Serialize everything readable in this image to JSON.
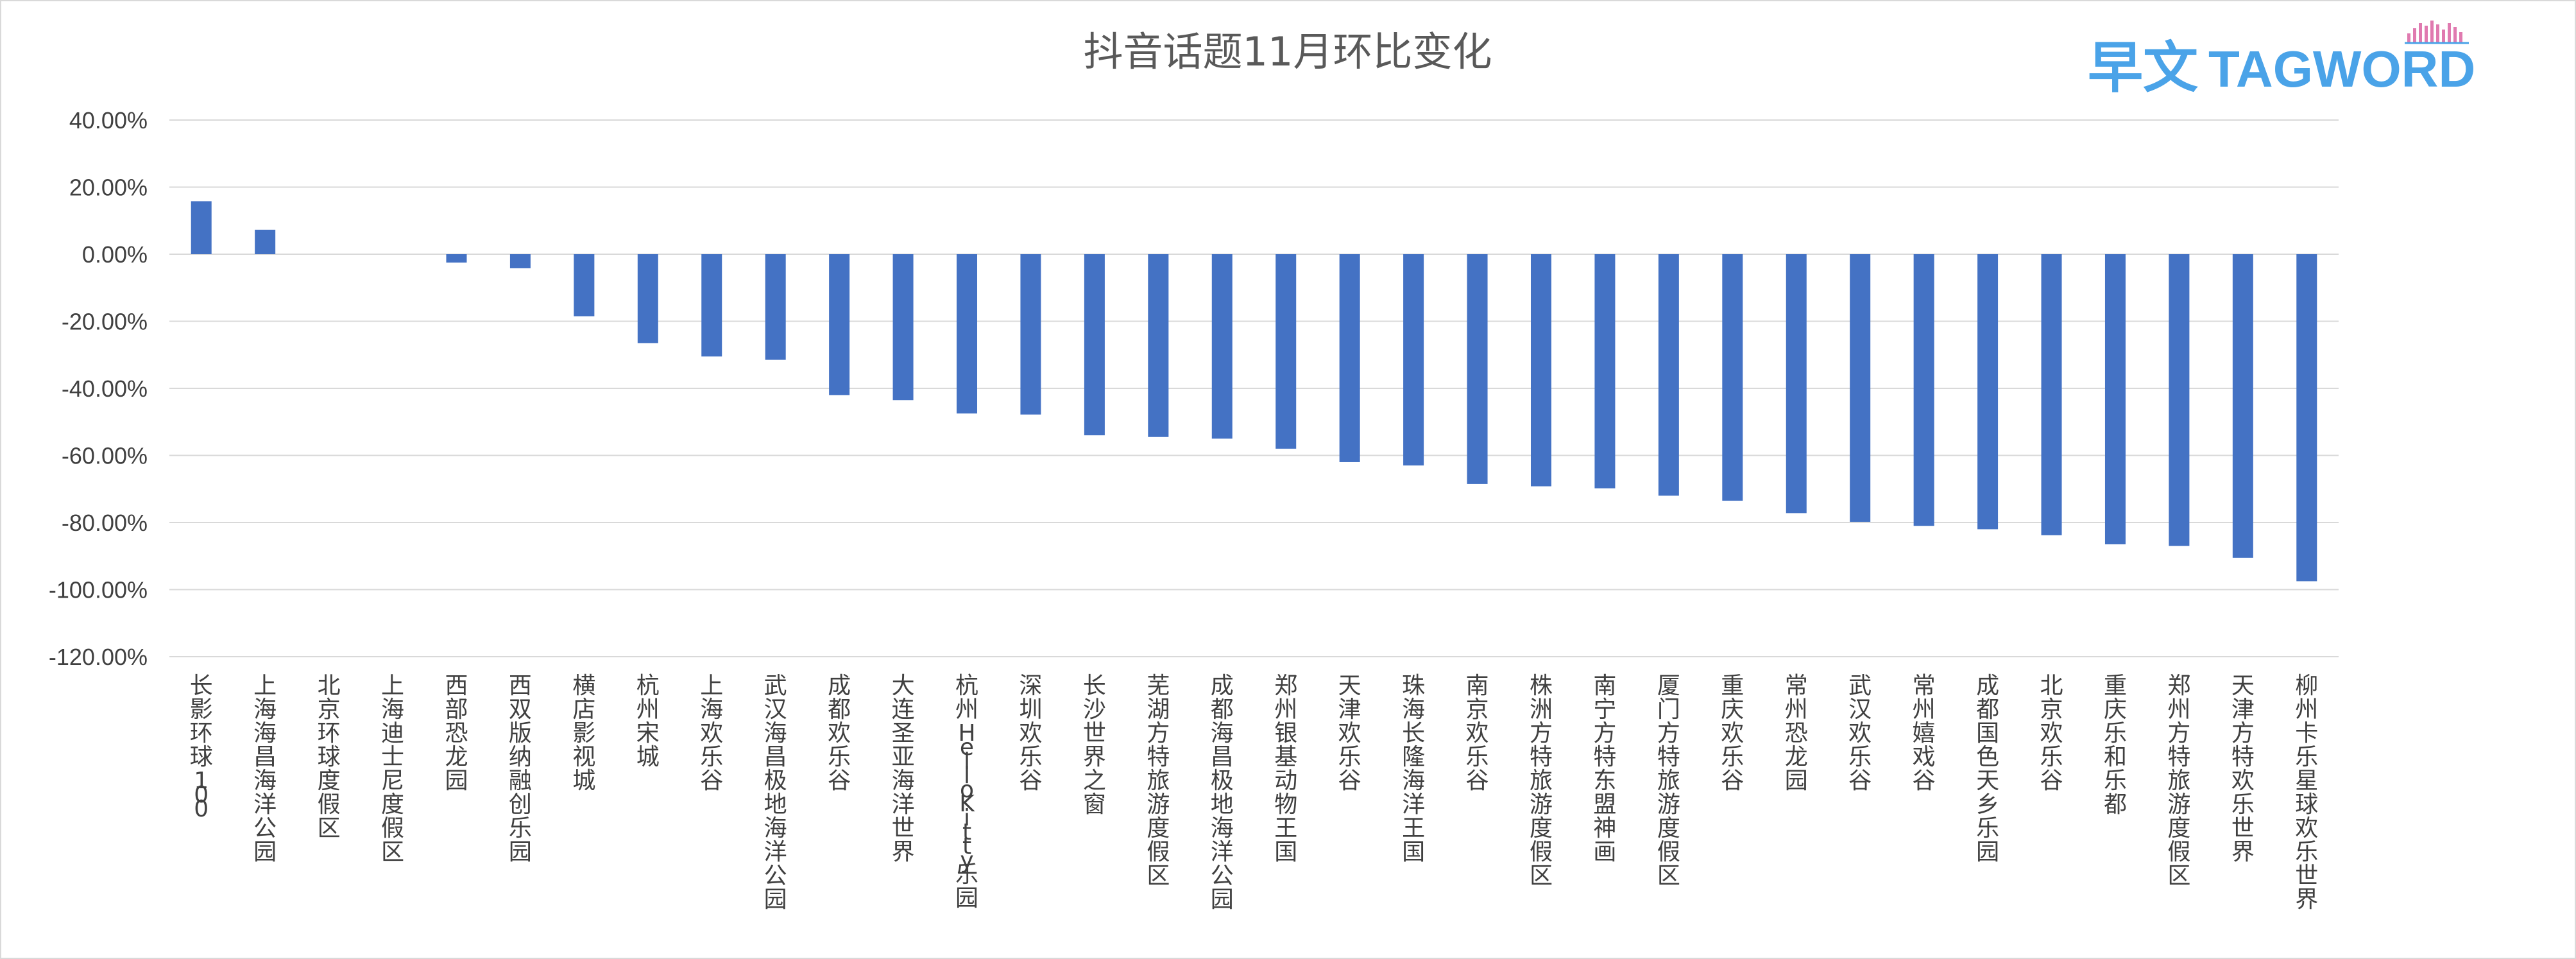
{
  "logo": {
    "chinese": "早文",
    "english": "TAGWORD",
    "color": "#4aa3e8"
  },
  "chart_data": {
    "type": "bar",
    "title": "抖音话题11月环比变化",
    "xlabel": "",
    "ylabel": "",
    "ylim": [
      -120,
      40
    ],
    "y_ticks": [
      "40.00%",
      "20.00%",
      "0.00%",
      "-20.00%",
      "-40.00%",
      "-60.00%",
      "-80.00%",
      "-100.00%",
      "-120.00%"
    ],
    "y_tick_values": [
      40,
      20,
      0,
      -20,
      -40,
      -60,
      -80,
      -100,
      -120
    ],
    "grid": true,
    "legend": "none",
    "bar_color": "#4472c4",
    "categories": [
      "长影环球100",
      "上海海昌海洋公园",
      "北京环球度假区",
      "上海迪士尼度假区",
      "西部恐龙园",
      "西双版纳融创乐园",
      "横店影视城",
      "杭州宋城",
      "上海欢乐谷",
      "武汉海昌极地海洋公园",
      "成都欢乐谷",
      "大连圣亚海洋世界",
      "杭州HelloKitty乐园",
      "深圳欢乐谷",
      "长沙世界之窗",
      "芜湖方特旅游度假区",
      "成都海昌极地海洋公园",
      "郑州银基动物王国",
      "天津欢乐谷",
      "珠海长隆海洋王国",
      "南京欢乐谷",
      "株洲方特旅游度假区",
      "南宁方特东盟神画",
      "厦门方特旅游度假区",
      "重庆欢乐谷",
      "常州恐龙园",
      "武汉欢乐谷",
      "常州嬉戏谷",
      "成都国色天乡乐园",
      "北京欢乐谷",
      "重庆乐和乐都",
      "郑州方特旅游度假区",
      "天津方特欢乐世界",
      "柳州卡乐星球欢乐世界"
    ],
    "values": [
      15.8,
      7.3,
      0,
      0,
      -2.5,
      -4.2,
      -18.5,
      -26.5,
      -30.5,
      -31.5,
      -42,
      -43.5,
      -47.5,
      -47.8,
      -54,
      -54.5,
      -55,
      -58,
      -62,
      -63,
      -68.5,
      -69.2,
      -69.8,
      -72,
      -73.5,
      -77.2,
      -79.8,
      -81,
      -82,
      -83.8,
      -86.5,
      -87,
      -90.5,
      -97.5
    ]
  }
}
